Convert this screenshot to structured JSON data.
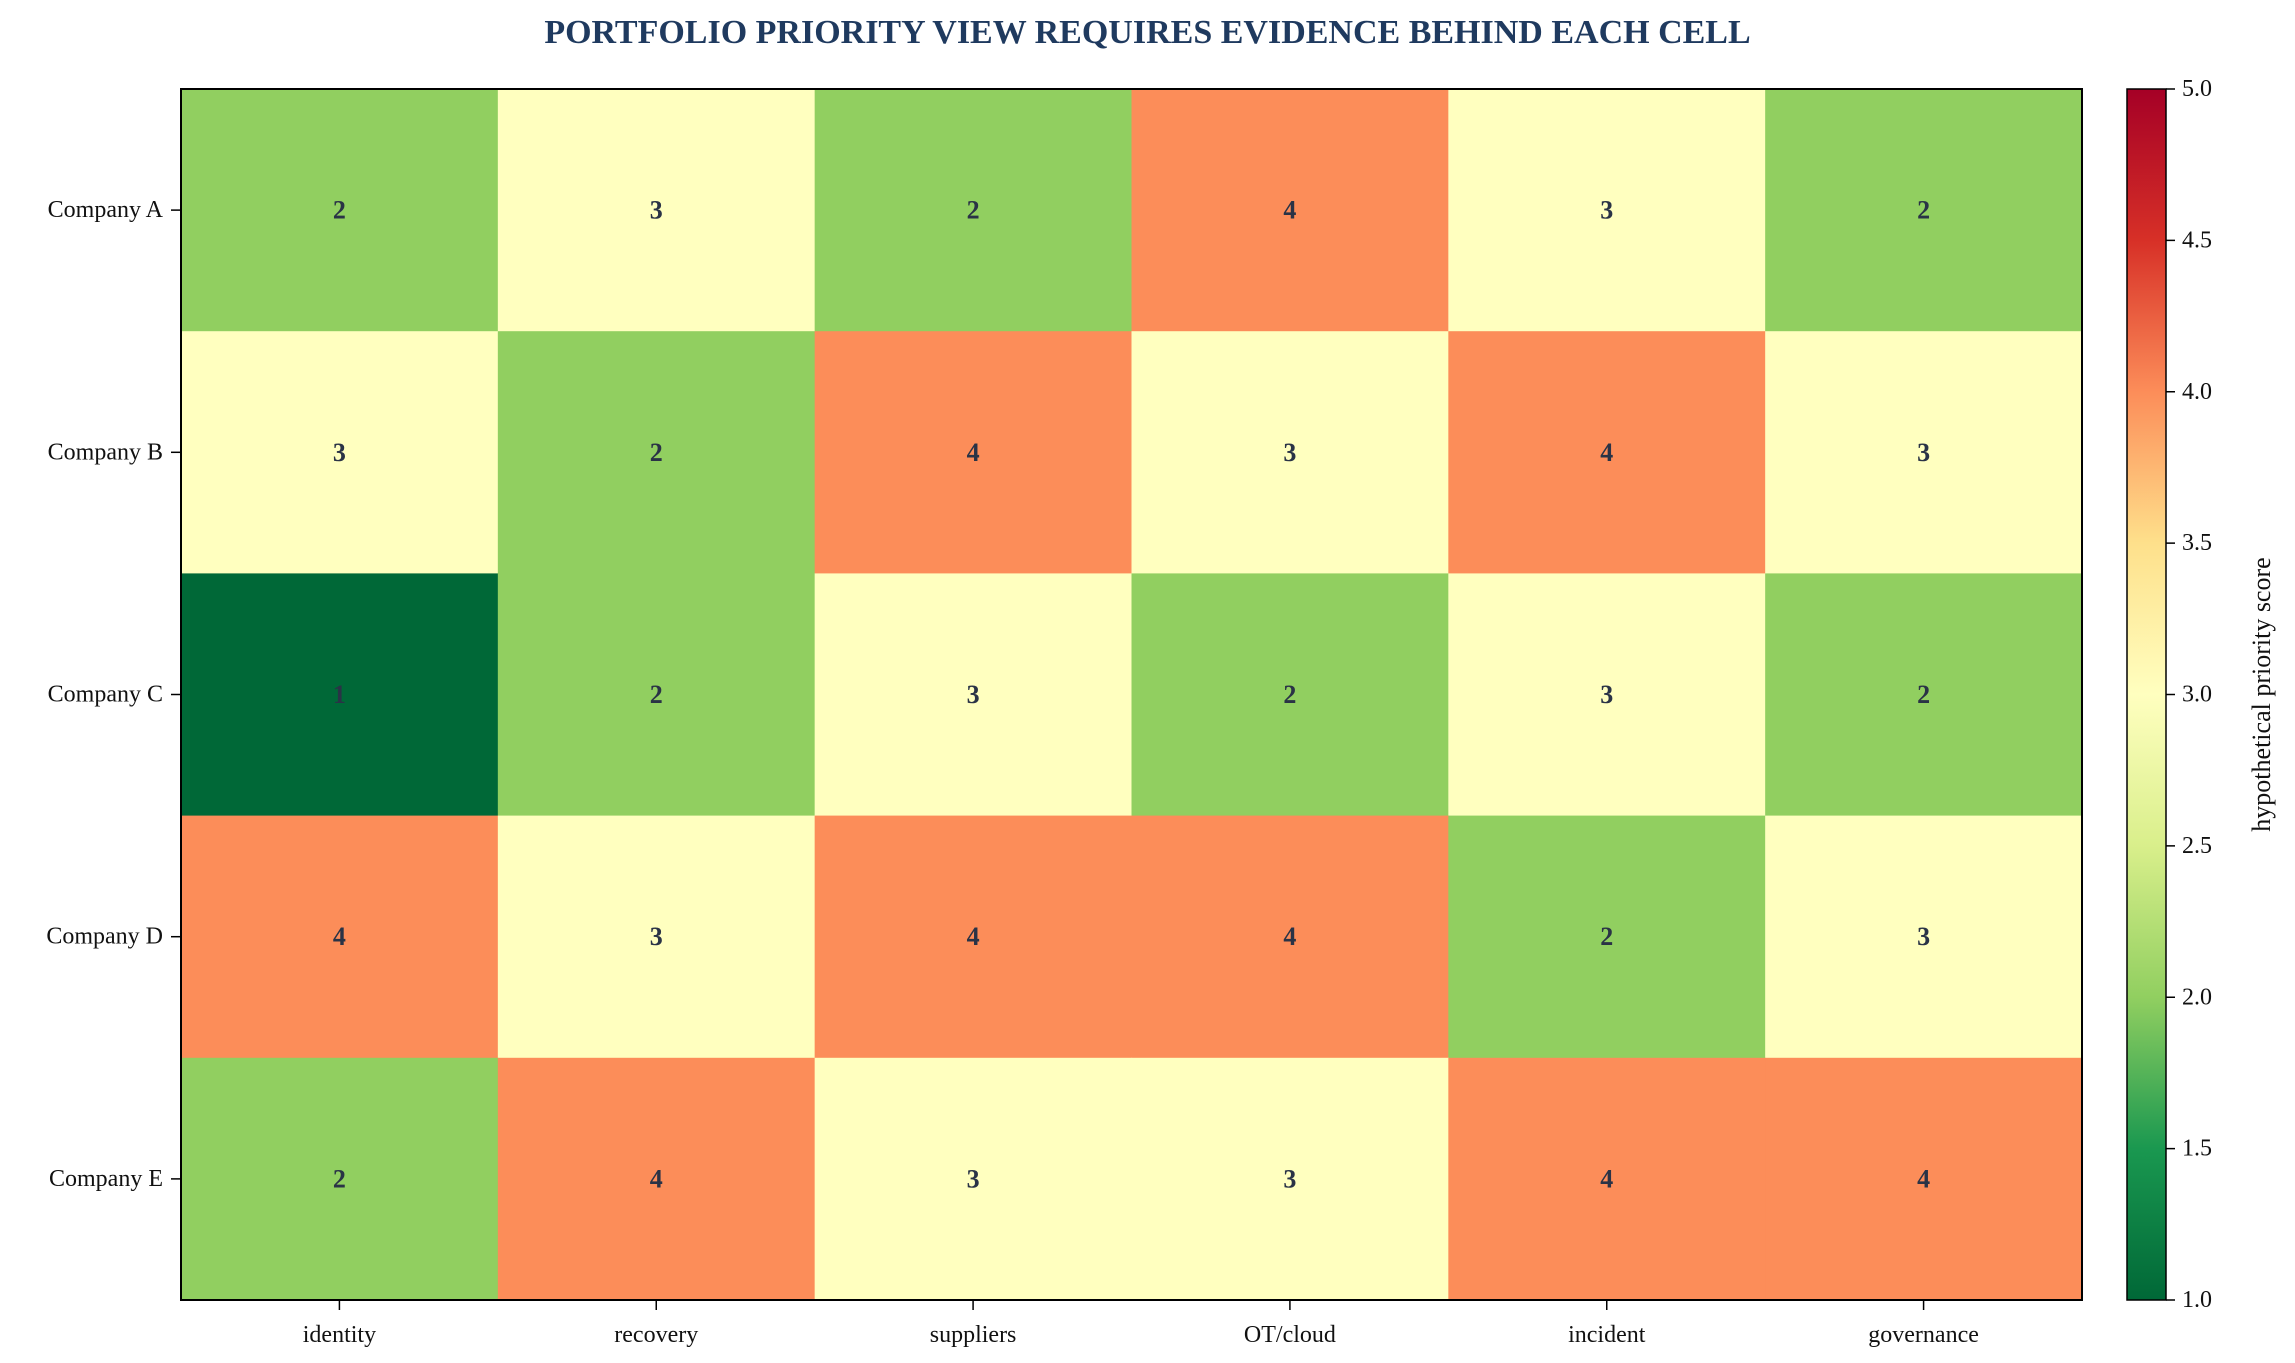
{
  "chart_data": {
    "type": "heatmap",
    "title": "PORTFOLIO PRIORITY VIEW REQUIRES EVIDENCE BEHIND EACH CELL",
    "rows": [
      "Company A",
      "Company B",
      "Company C",
      "Company D",
      "Company E"
    ],
    "columns": [
      "identity",
      "recovery",
      "suppliers",
      "OT/cloud",
      "incident",
      "governance"
    ],
    "values": [
      [
        2,
        3,
        2,
        4,
        3,
        2
      ],
      [
        3,
        2,
        4,
        3,
        4,
        3
      ],
      [
        1,
        2,
        3,
        2,
        3,
        2
      ],
      [
        4,
        3,
        4,
        4,
        2,
        3
      ],
      [
        2,
        4,
        3,
        3,
        4,
        4
      ]
    ],
    "colorbar": {
      "label": "hypothetical priority score",
      "range": [
        1.0,
        5.0
      ],
      "ticks": [
        "1.0",
        "1.5",
        "2.0",
        "2.5",
        "3.0",
        "3.5",
        "4.0",
        "4.5",
        "5.0"
      ],
      "colormap": "RdYlGn_r"
    },
    "colors": {
      "title": "#1f3a5f",
      "cell_text": "#2a3346",
      "axis": "#000000"
    },
    "grid": false,
    "legend": "colorbar-right"
  }
}
